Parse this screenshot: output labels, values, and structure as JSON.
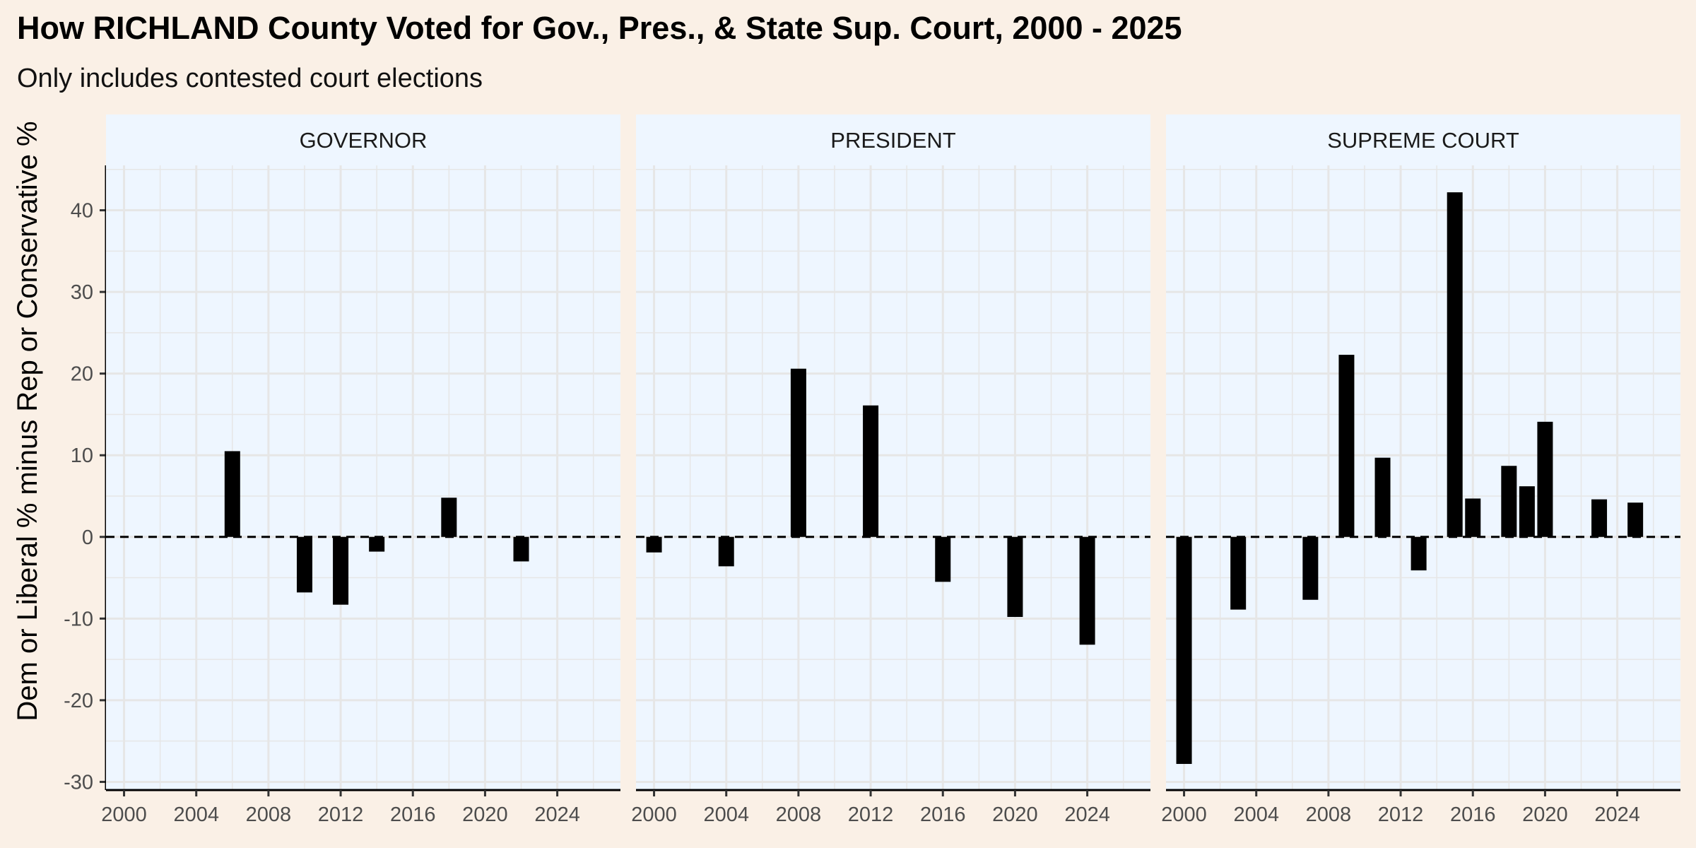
{
  "chart_data": {
    "type": "bar",
    "title": "How RICHLAND County Voted for Gov., Pres., & State Sup. Court, 2000 - 2025",
    "subtitle": "Only includes contested court elections",
    "ylabel": "Dem or Liberal % minus Rep or Conservative %",
    "xlabel": "",
    "ylim": [
      -31,
      45.5
    ],
    "xlim": [
      1999,
      2027.5
    ],
    "y_ticks": [
      -30,
      -20,
      -10,
      0,
      10,
      20,
      30,
      40
    ],
    "x_ticks": [
      2000,
      2004,
      2008,
      2012,
      2016,
      2020,
      2024
    ],
    "reference_line": {
      "y": 0,
      "style": "dashed"
    },
    "grid": true,
    "colors": {
      "background": "#faf0e6",
      "panel": "#eef6ff",
      "strip": "#eef6ff",
      "bar": "#000000",
      "grid": "#e6e6e6"
    },
    "panels": [
      {
        "name": "GOVERNOR",
        "x": [
          2006,
          2010,
          2012,
          2014,
          2018,
          2022
        ],
        "values": [
          10.5,
          -6.8,
          -8.3,
          -1.8,
          4.8,
          -3.0
        ]
      },
      {
        "name": "PRESIDENT",
        "x": [
          2000,
          2004,
          2008,
          2012,
          2016,
          2020,
          2024
        ],
        "values": [
          -1.9,
          -3.6,
          20.6,
          16.1,
          -5.5,
          -9.8,
          -13.2
        ]
      },
      {
        "name": "SUPREME COURT",
        "x": [
          2000,
          2003,
          2007,
          2009,
          2011,
          2013,
          2015,
          2016,
          2018,
          2019,
          2020,
          2023,
          2025
        ],
        "values": [
          -27.8,
          -8.9,
          -7.7,
          22.3,
          9.7,
          -4.1,
          42.2,
          4.7,
          8.7,
          6.2,
          14.1,
          4.6,
          4.2
        ]
      }
    ]
  }
}
